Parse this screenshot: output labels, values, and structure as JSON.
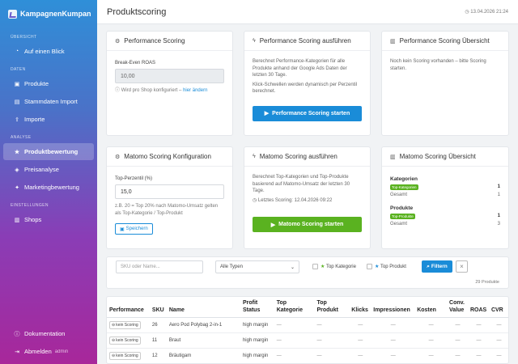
{
  "brand": {
    "name": "KampagnenKumpan",
    "icon": "chart-logo-icon"
  },
  "sidebar": {
    "sections": [
      {
        "label": "Übersicht",
        "items": [
          {
            "label": "Auf einen Blick",
            "icon": "dashboard-icon"
          }
        ]
      },
      {
        "label": "Daten",
        "items": [
          {
            "label": "Produkte",
            "icon": "box-icon"
          },
          {
            "label": "Stammdaten Import",
            "icon": "file-import-icon"
          },
          {
            "label": "Importe",
            "icon": "upload-icon"
          }
        ]
      },
      {
        "label": "Analyse",
        "items": [
          {
            "label": "Produktbewertung",
            "icon": "star-icon",
            "active": true
          },
          {
            "label": "Preisanalyse",
            "icon": "tag-icon"
          },
          {
            "label": "Marketingbewertung",
            "icon": "megaphone-icon"
          }
        ]
      },
      {
        "label": "Einstellungen",
        "items": [
          {
            "label": "Shops",
            "icon": "store-icon"
          }
        ]
      }
    ],
    "bottom": {
      "docs": "Dokumentation",
      "logout": "Abmelden",
      "user": "admin"
    }
  },
  "header": {
    "title": "Produktscoring",
    "date": "13.04.2026 21:24"
  },
  "cards": {
    "perf": {
      "title": "Performance Scoring",
      "field_label": "Break-Even ROAS",
      "value": "10,00",
      "hint": "Wird pro Shop konfiguriert –",
      "hint_link": "hier ändern"
    },
    "perf_run": {
      "title": "Performance Scoring ausführen",
      "text1": "Berechnet Performance-Kategorien für alle Produkte anhand der Google Ads Daten der letzten 30 Tage.",
      "text2": "Klick-Schwellen werden dynamisch per Perzentil berechnet.",
      "button": "Performance Scoring starten"
    },
    "perf_overview": {
      "title": "Performance Scoring Übersicht",
      "text": "Noch kein Scoring vorhanden – bitte Scoring starten."
    },
    "matomo_cfg": {
      "title": "Matomo Scoring Konfiguration",
      "field_label": "Top-Perzentil (%)",
      "value": "15,0",
      "hint": "z.B. 20 = Top 20% nach Matomo-Umsatz gelten als Top-Kategorie / Top-Produkt",
      "button": "Speichern"
    },
    "matomo_run": {
      "title": "Matomo Scoring ausführen",
      "text": "Berechnet Top-Kategorien und Top-Produkte basierend auf Matomo-Umsatz der letzten 30 Tage.",
      "last": "Letztes Scoring: 12.04.2026 09:22",
      "button": "Matomo Scoring starten"
    },
    "matomo_overview": {
      "title": "Matomo Scoring Übersicht",
      "cat_title": "Kategorien",
      "cat_badge": "Top-Kategorien",
      "cat_top": "1",
      "cat_total_label": "Gesamt",
      "cat_total": "1",
      "prod_title": "Produkte",
      "prod_badge": "Top-Produkte",
      "prod_top": "1",
      "prod_total_label": "Gesamt",
      "prod_total": "3"
    }
  },
  "filter": {
    "search_placeholder": "SKU oder Name...",
    "type_select": "Alle Typen",
    "chk_top_cat": "Top Kategorie",
    "chk_top_prod": "Top Produkt",
    "button": "Filtern",
    "count": "29 Produkte"
  },
  "table": {
    "headers": [
      "Performance",
      "SKU",
      "Name",
      "Profit Status",
      "Top Kategorie",
      "Top Produkt",
      "Klicks",
      "Impressionen",
      "Kosten",
      "Conv. Value",
      "ROAS",
      "CVR"
    ],
    "rows": [
      {
        "perf": "kein Scoring",
        "sku": "26",
        "name": "Aero Pod Polybag 2-in-1",
        "profit": "high margin",
        "topcat": "—",
        "topprod": "—",
        "klicks": "—",
        "impr": "—",
        "kosten": "—",
        "conv": "—",
        "roas": "—",
        "cvr": "—"
      },
      {
        "perf": "kein Scoring",
        "sku": "11",
        "name": "Braut",
        "profit": "high margin",
        "topcat": "—",
        "topprod": "—",
        "klicks": "—",
        "impr": "—",
        "kosten": "—",
        "conv": "—",
        "roas": "—",
        "cvr": "—"
      },
      {
        "perf": "kein Scoring",
        "sku": "12",
        "name": "Bräutigam",
        "profit": "high margin",
        "topcat": "—",
        "topprod": "—",
        "klicks": "—",
        "impr": "—",
        "kosten": "—",
        "conv": "—",
        "roas": "—",
        "cvr": "—"
      }
    ]
  },
  "colors": {
    "primary": "#1a8cd8",
    "success": "#5ab220"
  }
}
